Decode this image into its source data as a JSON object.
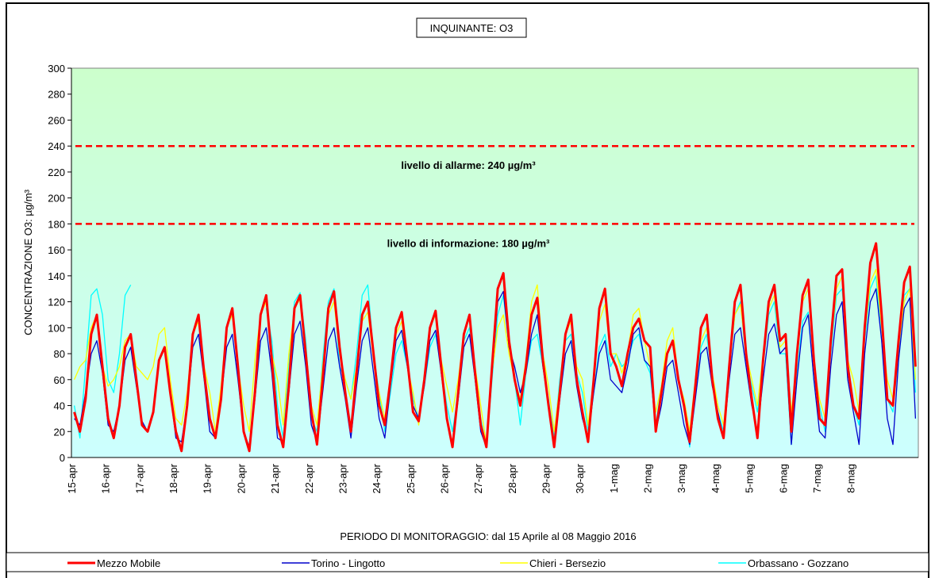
{
  "chart_data": {
    "type": "line",
    "title": "INQUINANTE: O3",
    "y_label": "CONCENTRAZIONE O3: µg/m³",
    "x_label": "PERIODO DI MONITORAGGIO: dal 15 Aprile al 08 Maggio 2016",
    "categories": [
      "15-apr",
      "16-apr",
      "17-apr",
      "18-apr",
      "19-apr",
      "20-apr",
      "21-apr",
      "22-apr",
      "23-apr",
      "24-apr",
      "25-apr",
      "26-apr",
      "27-apr",
      "28-apr",
      "29-apr",
      "30-apr",
      "1-mag",
      "2-mag",
      "3-mag",
      "4-mag",
      "5-mag",
      "6-mag",
      "7-mag",
      "8-mag",
      null
    ],
    "ylim": [
      0,
      300
    ],
    "yticks": [
      0,
      20,
      40,
      60,
      80,
      100,
      120,
      140,
      160,
      180,
      200,
      220,
      240,
      260,
      280,
      300
    ],
    "reference_lines": [
      {
        "value": 240,
        "label": "livello di allarme: 240 µg/m³",
        "color": "#ff0000"
      },
      {
        "value": 180,
        "label": "livello di informazione: 180 µg/m³",
        "color": "#ff0000"
      }
    ],
    "series": [
      {
        "name": "Mezzo Mobile",
        "color": "#ff0000",
        "values": [
          [
            35,
            20,
            45,
            95,
            110,
            70
          ],
          [
            30,
            15,
            40,
            85,
            95,
            60
          ],
          [
            25,
            20,
            35,
            75,
            85,
            50
          ],
          [
            20,
            5,
            40,
            95,
            110,
            65
          ],
          [
            30,
            15,
            45,
            100,
            115,
            70
          ],
          [
            20,
            5,
            50,
            110,
            125,
            75
          ],
          [
            25,
            8,
            55,
            115,
            125,
            80
          ],
          [
            35,
            10,
            60,
            115,
            128,
            85
          ],
          [
            50,
            20,
            65,
            110,
            120,
            80
          ],
          [
            40,
            25,
            60,
            100,
            112,
            75
          ],
          [
            35,
            28,
            60,
            100,
            113,
            70
          ],
          [
            30,
            8,
            50,
            95,
            110,
            65
          ],
          [
            25,
            8,
            70,
            130,
            142,
            90
          ],
          [
            60,
            40,
            70,
            110,
            123,
            75
          ],
          [
            40,
            8,
            50,
            95,
            110,
            60
          ],
          [
            35,
            12,
            60,
            115,
            130,
            80
          ],
          [
            70,
            55,
            80,
            100,
            107,
            90
          ],
          [
            85,
            20,
            50,
            80,
            90,
            60
          ],
          [
            40,
            12,
            55,
            100,
            110,
            60
          ],
          [
            30,
            15,
            70,
            120,
            133,
            80
          ],
          [
            45,
            15,
            75,
            120,
            133,
            90
          ],
          [
            95,
            20,
            80,
            125,
            137,
            75
          ],
          [
            30,
            25,
            90,
            140,
            145,
            70
          ],
          [
            40,
            30,
            100,
            150,
            165,
            110
          ],
          [
            45,
            40,
            90,
            135,
            147,
            70
          ]
        ]
      },
      {
        "name": "Torino - Lingotto",
        "color": "#0000cc",
        "values": [
          [
            30,
            25,
            50,
            80,
            90,
            65
          ],
          [
            25,
            20,
            40,
            75,
            85,
            55
          ],
          [
            28,
            20,
            35,
            75,
            85,
            50
          ],
          [
            15,
            12,
            40,
            85,
            95,
            60
          ],
          [
            20,
            15,
            45,
            85,
            95,
            60
          ],
          [
            20,
            8,
            45,
            90,
            100,
            65
          ],
          [
            15,
            12,
            50,
            95,
            105,
            70
          ],
          [
            25,
            12,
            50,
            90,
            100,
            70
          ],
          [
            45,
            15,
            55,
            90,
            100,
            65
          ],
          [
            30,
            15,
            55,
            90,
            98,
            70
          ],
          [
            40,
            30,
            55,
            90,
            98,
            65
          ],
          [
            30,
            10,
            45,
            85,
            95,
            60
          ],
          [
            20,
            8,
            65,
            120,
            128,
            85
          ],
          [
            70,
            50,
            65,
            95,
            110,
            70
          ],
          [
            40,
            10,
            45,
            80,
            90,
            55
          ],
          [
            30,
            15,
            50,
            80,
            90,
            60
          ],
          [
            55,
            50,
            70,
            95,
            100,
            75
          ],
          [
            70,
            20,
            40,
            70,
            75,
            50
          ],
          [
            25,
            10,
            45,
            80,
            85,
            55
          ],
          [
            35,
            15,
            60,
            95,
            100,
            70
          ],
          [
            40,
            20,
            60,
            95,
            103,
            80
          ],
          [
            85,
            10,
            60,
            100,
            110,
            60
          ],
          [
            20,
            15,
            70,
            110,
            120,
            60
          ],
          [
            35,
            10,
            80,
            120,
            130,
            90
          ],
          [
            30,
            10,
            75,
            115,
            123,
            30
          ]
        ]
      },
      {
        "name": "Chieri - Bersezio",
        "color": "#ffff00",
        "values": [
          [
            60,
            70,
            75,
            100,
            110,
            70
          ],
          [
            55,
            60,
            70,
            90,
            95,
            70
          ],
          [
            65,
            60,
            70,
            95,
            100,
            60
          ],
          [
            30,
            25,
            50,
            95,
            105,
            70
          ],
          [
            50,
            20,
            55,
            100,
            110,
            70
          ],
          [
            40,
            20,
            75,
            110,
            120,
            80
          ],
          [
            60,
            25,
            80,
            115,
            122,
            85
          ],
          [
            40,
            25,
            70,
            110,
            120,
            80
          ],
          [
            60,
            45,
            70,
            105,
            112,
            75
          ],
          [
            50,
            30,
            60,
            95,
            105,
            70
          ],
          [
            50,
            25,
            60,
            100,
            110,
            75
          ],
          [
            55,
            35,
            60,
            95,
            108,
            70
          ],
          [
            40,
            10,
            65,
            100,
            110,
            80
          ],
          [
            60,
            45,
            75,
            120,
            133,
            80
          ],
          [
            55,
            20,
            55,
            95,
            105,
            70
          ],
          [
            60,
            25,
            60,
            105,
            118,
            80
          ],
          [
            80,
            65,
            80,
            110,
            115,
            90
          ],
          [
            70,
            35,
            55,
            90,
            100,
            60
          ],
          [
            45,
            20,
            60,
            90,
            100,
            65
          ],
          [
            40,
            25,
            70,
            110,
            118,
            80
          ],
          [
            60,
            40,
            80,
            115,
            125,
            85
          ],
          [
            90,
            35,
            75,
            120,
            130,
            70
          ],
          [
            45,
            30,
            85,
            130,
            140,
            75
          ],
          [
            60,
            35,
            95,
            135,
            145,
            100
          ],
          [
            60,
            45,
            85,
            120,
            130,
            60
          ]
        ]
      },
      {
        "name": "Orbassano - Gozzano",
        "color": "#00ffff",
        "values": [
          [
            40,
            15,
            70,
            125,
            130,
            110
          ],
          [
            60,
            50,
            80,
            125,
            133,
            null
          ],
          [
            null,
            null,
            null,
            null,
            null,
            null
          ],
          [
            null,
            null,
            null,
            null,
            null,
            null
          ],
          [
            null,
            null,
            null,
            null,
            null,
            null
          ],
          [
            null,
            null,
            null,
            null,
            115,
            90
          ],
          [
            40,
            15,
            70,
            120,
            127,
            90
          ],
          [
            30,
            20,
            75,
            120,
            130,
            70
          ],
          [
            60,
            45,
            80,
            125,
            133,
            80
          ],
          [
            50,
            20,
            50,
            80,
            90,
            70
          ],
          [
            45,
            30,
            55,
            85,
            95,
            70
          ],
          [
            40,
            20,
            50,
            90,
            100,
            60
          ],
          [
            30,
            8,
            60,
            110,
            125,
            85
          ],
          [
            60,
            25,
            65,
            90,
            95,
            70
          ],
          [
            45,
            15,
            60,
            90,
            95,
            65
          ],
          [
            50,
            20,
            50,
            85,
            95,
            70
          ],
          [
            80,
            70,
            75,
            90,
            95,
            75
          ],
          [
            65,
            25,
            55,
            80,
            90,
            60
          ],
          [
            40,
            8,
            50,
            85,
            95,
            60
          ],
          [
            35,
            20,
            65,
            110,
            120,
            75
          ],
          [
            55,
            35,
            70,
            110,
            120,
            80
          ],
          [
            80,
            10,
            65,
            105,
            112,
            60
          ],
          [
            40,
            20,
            80,
            125,
            130,
            75
          ],
          [
            40,
            25,
            90,
            130,
            140,
            90
          ],
          [
            45,
            35,
            80,
            125,
            130,
            50
          ]
        ]
      }
    ]
  }
}
